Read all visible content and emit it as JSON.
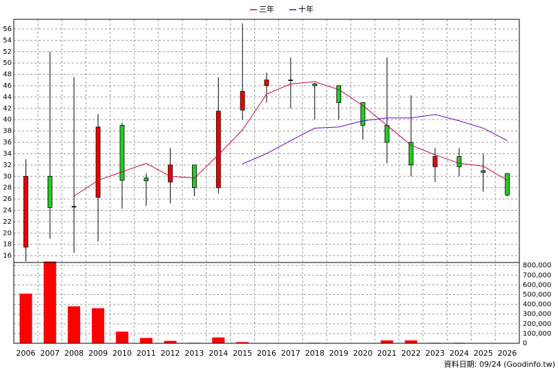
{
  "chart_data": {
    "type": "candlestick",
    "categories": [
      "2006",
      "2007",
      "2008",
      "2009",
      "2010",
      "2011",
      "2012",
      "2013",
      "2014",
      "2015",
      "2016",
      "2017",
      "2018",
      "2019",
      "2020",
      "2021",
      "2022",
      "2023",
      "2024",
      "2025",
      "2026"
    ],
    "open": [
      17.5,
      30,
      24.7,
      26.3,
      39,
      29.7,
      29,
      32,
      28,
      41.7,
      46,
      47,
      46.3,
      46,
      43,
      39,
      36,
      31.7,
      33.5,
      31,
      30.5
    ],
    "high": [
      33,
      52,
      47.5,
      41,
      39.5,
      30.5,
      35,
      32,
      47.5,
      57,
      48.3,
      51,
      46.5,
      46,
      43,
      51,
      44.3,
      35,
      35,
      34,
      30.5
    ],
    "low": [
      15,
      19,
      16.5,
      18.5,
      24.3,
      24.8,
      25.2,
      26.5,
      27,
      40,
      43,
      42,
      40,
      40,
      36.5,
      32.3,
      30,
      29,
      30,
      27.3,
      26.5
    ],
    "close": [
      30,
      24.5,
      24.7,
      38.7,
      29.3,
      29.2,
      32,
      28,
      41.5,
      45,
      47,
      47,
      46,
      43,
      39,
      36,
      32,
      33.5,
      31.7,
      30.7,
      26.7
    ],
    "up_color": "#ee0000",
    "down_color": "#22cc22",
    "ylim": [
      14.8,
      57.7
    ],
    "yticks": [
      16,
      18,
      20,
      22,
      24,
      26,
      28,
      30,
      32,
      34,
      36,
      38,
      40,
      42,
      44,
      46,
      48,
      50,
      52,
      54,
      56
    ],
    "grid": true,
    "series": [
      {
        "name": "三年",
        "color": "#cc0055",
        "values": [
          null,
          null,
          26.5,
          29.3,
          30.8,
          32.3,
          30,
          29.7,
          33.8,
          38.2,
          44.5,
          46.3,
          46.7,
          45.3,
          42.5,
          39,
          35.5,
          33.8,
          32.3,
          31.8,
          29.3
        ]
      },
      {
        "name": "十年",
        "color": "#6600cc",
        "values": [
          null,
          null,
          null,
          null,
          null,
          null,
          null,
          null,
          null,
          32.2,
          34,
          36.3,
          38.5,
          38.7,
          39.8,
          40.3,
          40.3,
          40.9,
          39.8,
          38.5,
          36.3
        ]
      }
    ],
    "volume": {
      "color": "#ff0000",
      "values": [
        510000,
        840000,
        380000,
        360000,
        120000,
        55000,
        25000,
        5000,
        60000,
        12000,
        3000,
        2000,
        5000,
        2000,
        2000,
        30000,
        30000,
        5000,
        5000,
        2000,
        2000
      ],
      "ylim": [
        0,
        830000
      ],
      "yticks": [
        0,
        {
          "value": 100000,
          "label": "100,000"
        },
        {
          "value": 200000,
          "label": "200,000"
        },
        {
          "value": 300000,
          "label": "300,000"
        },
        {
          "value": 400000,
          "label": "400,000"
        },
        {
          "value": 500000,
          "label": "500,000"
        },
        {
          "value": 600000,
          "label": "600,000"
        },
        {
          "value": 700000,
          "label": "700,000"
        },
        {
          "value": 800000,
          "label": "800,000"
        }
      ]
    },
    "footer": "資料日期: 09/24  (Goodinfo.tw)"
  }
}
